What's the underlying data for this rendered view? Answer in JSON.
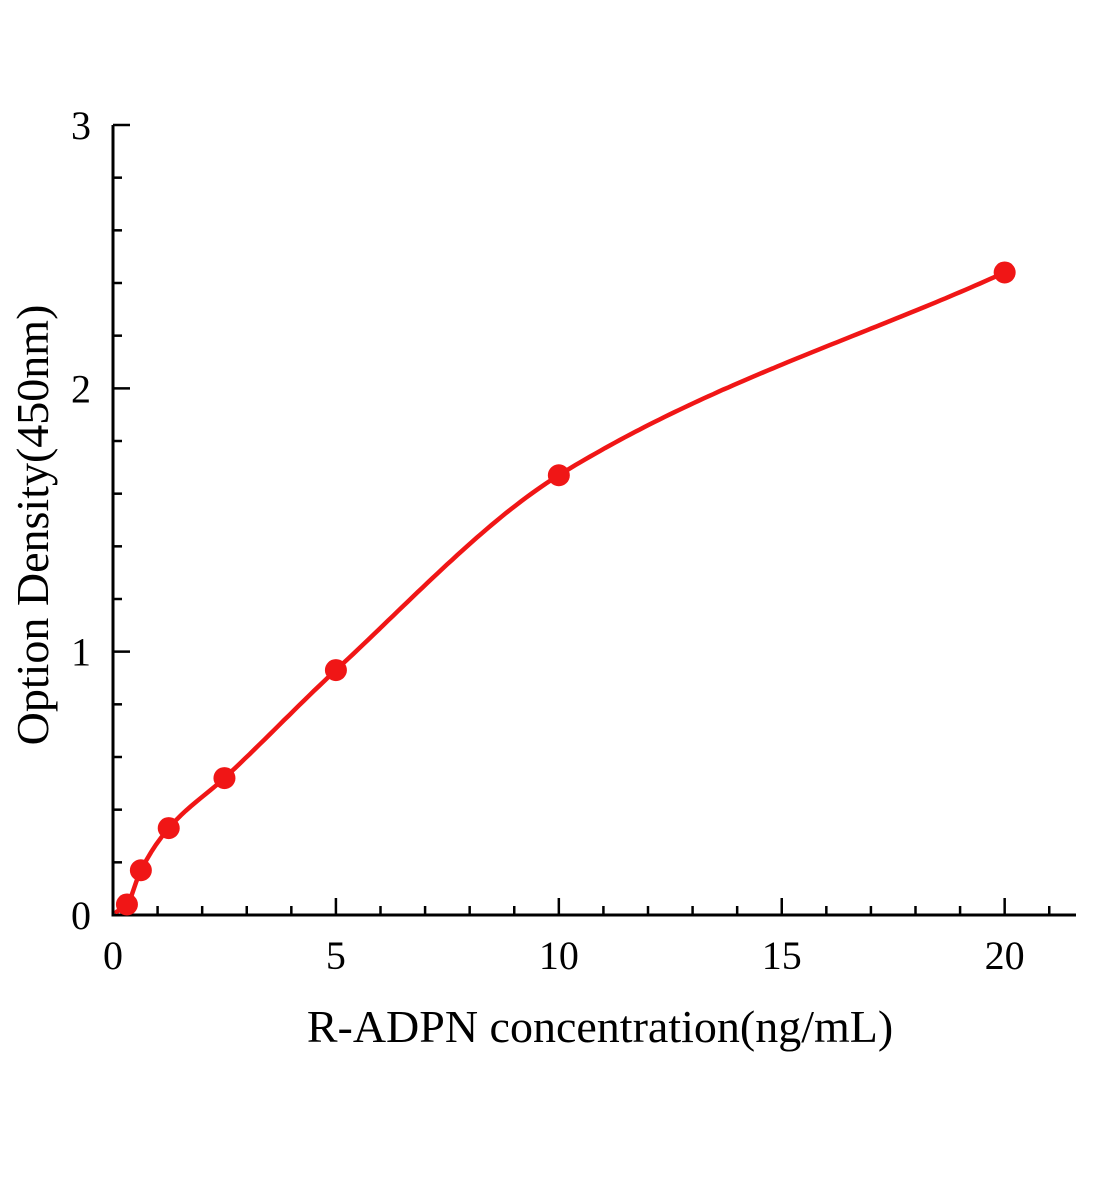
{
  "chart_data": {
    "type": "scatter",
    "title": "",
    "xlabel": "R-ADPN concentration(ng/mL)",
    "ylabel": "Option Density(450nm)",
    "x": [
      0.3125,
      0.625,
      1.25,
      2.5,
      5,
      10,
      20
    ],
    "y": [
      0.04,
      0.17,
      0.33,
      0.52,
      0.93,
      1.67,
      2.44
    ],
    "curve": "smooth saturating fit through data points",
    "xlim": [
      0,
      21.6
    ],
    "ylim": [
      0,
      3
    ],
    "x_ticks": [
      0,
      5,
      10,
      15,
      20
    ],
    "y_ticks": [
      0,
      1,
      2,
      3
    ],
    "x_minor_step": 1,
    "y_minor_step": 0.2,
    "grid": false,
    "legend": "none",
    "point_color": "#f01616",
    "line_color": "#f01616",
    "axis_color": "#000000"
  }
}
